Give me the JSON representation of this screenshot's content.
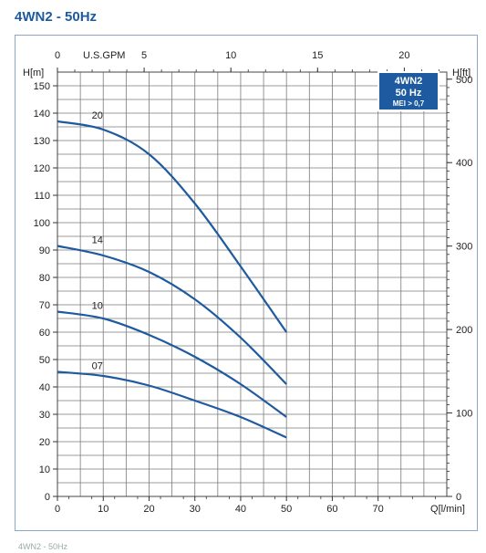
{
  "page_title": "4WN2 - 50Hz",
  "badge": {
    "line1": "4WN2",
    "line2": "50 Hz",
    "line3": "MEI > 0,7"
  },
  "chart_data": {
    "type": "line",
    "title": "",
    "xlabel": "Q[l/min]",
    "ylabel": "H[m]",
    "x2label": "U.S.GPM",
    "y2label": "H[ft]",
    "xlim": [
      0,
      85
    ],
    "ylim": [
      0,
      155
    ],
    "x2lim": [
      0,
      22.45
    ],
    "y2lim": [
      0,
      508.5
    ],
    "x_ticks": [
      0,
      10,
      20,
      30,
      40,
      50,
      60,
      70
    ],
    "y_ticks": [
      0,
      10,
      20,
      30,
      40,
      50,
      60,
      70,
      80,
      90,
      100,
      110,
      120,
      130,
      140,
      150
    ],
    "x2_ticks": [
      0,
      5,
      10,
      15,
      20
    ],
    "y2_ticks": [
      0,
      100,
      200,
      300,
      400,
      500
    ],
    "grid": true,
    "line_color": "#1e5aa0",
    "series": [
      {
        "name": "20",
        "x": [
          0,
          10,
          20,
          30,
          40,
          50
        ],
        "y": [
          137,
          134,
          125,
          107,
          84,
          60
        ]
      },
      {
        "name": "14",
        "x": [
          0,
          10,
          20,
          30,
          40,
          50
        ],
        "y": [
          91.5,
          88,
          82,
          72,
          58,
          41
        ]
      },
      {
        "name": "10",
        "x": [
          0,
          10,
          20,
          30,
          40,
          50
        ],
        "y": [
          67.5,
          65,
          59,
          51,
          41,
          29
        ]
      },
      {
        "name": "07",
        "x": [
          0,
          10,
          20,
          30,
          40,
          50
        ],
        "y": [
          45.5,
          44,
          40.5,
          35,
          29,
          21.5
        ]
      }
    ]
  },
  "footer_text": "4WN2 - 50Hz"
}
